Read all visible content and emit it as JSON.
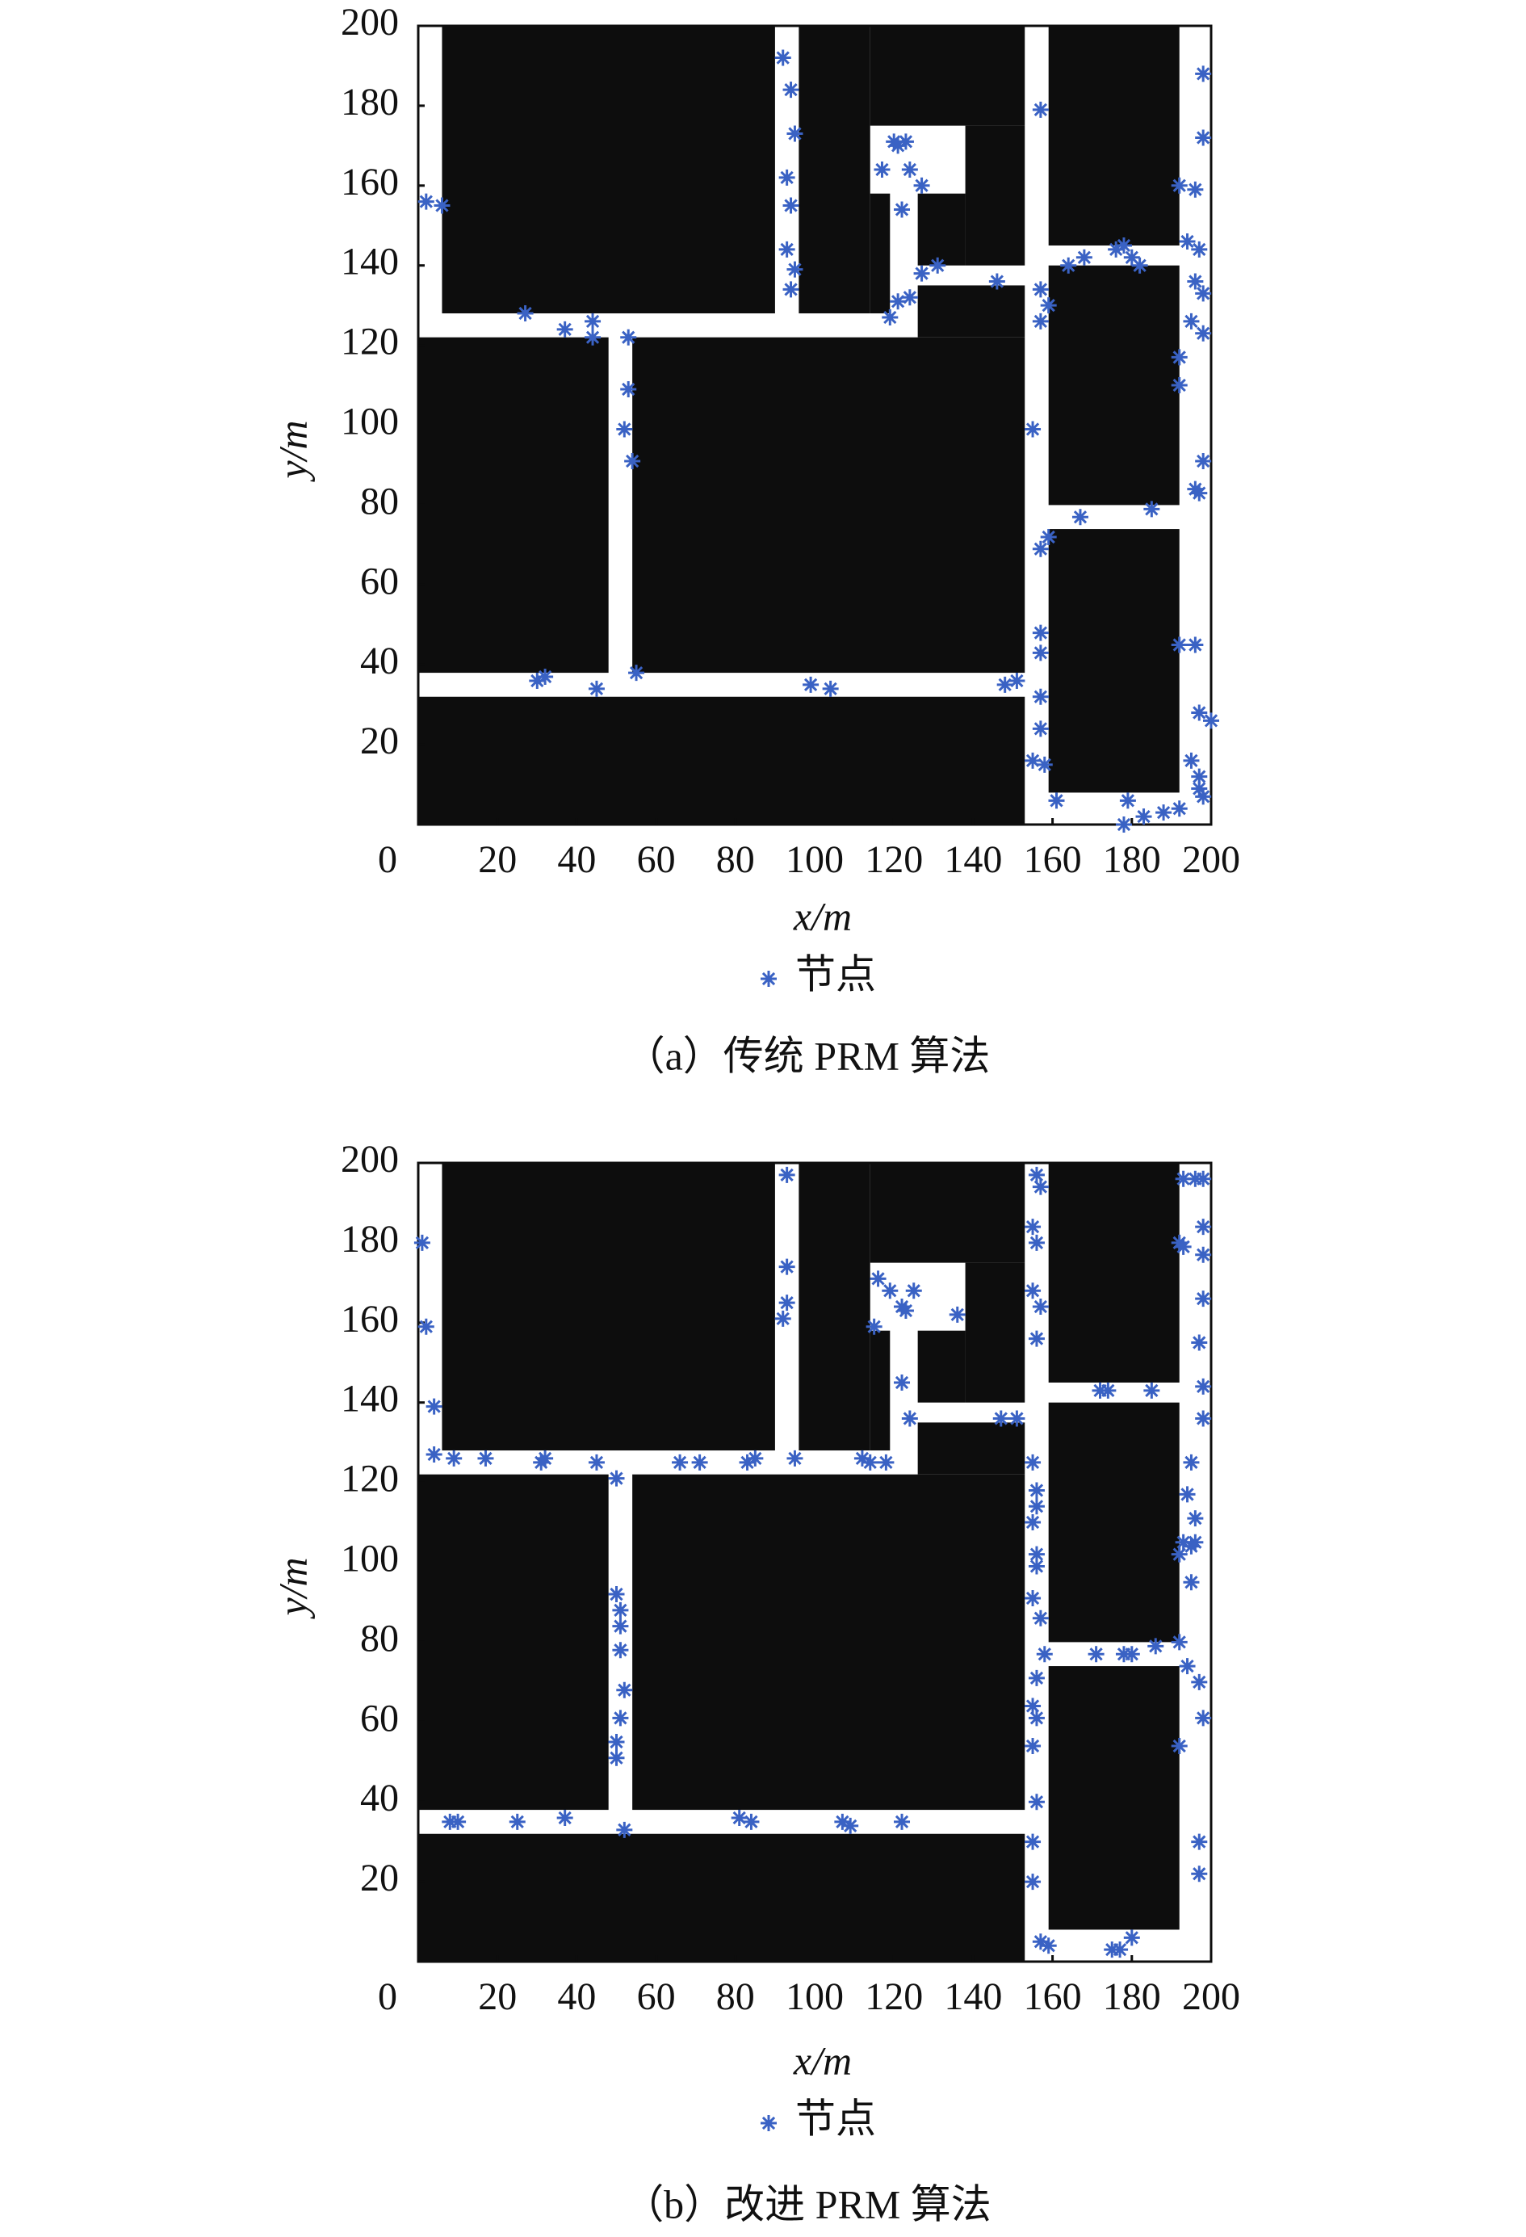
{
  "chart_data": [
    {
      "type": "scatter",
      "title": "（a）传统 PRM 算法",
      "x_label": "x/m",
      "y_label": "y/m",
      "xlim": [
        0,
        200
      ],
      "ylim": [
        0,
        200
      ],
      "xticks": [
        0,
        20,
        40,
        60,
        80,
        100,
        120,
        140,
        160,
        180,
        200
      ],
      "yticks": [
        20,
        40,
        60,
        80,
        100,
        120,
        140,
        160,
        180,
        200
      ],
      "series": [
        {
          "name": "节点",
          "color": "#3a62c4",
          "x": [
            2,
            6,
            27,
            37,
            44,
            44,
            53,
            53,
            52,
            54,
            30,
            32,
            45,
            55,
            99,
            104,
            148,
            151,
            92,
            94,
            95,
            93,
            94,
            93,
            95,
            94,
            120,
            123,
            121,
            117,
            124,
            127,
            122,
            119,
            121,
            124,
            127,
            131,
            146,
            157,
            157,
            157,
            159,
            155,
            159,
            157,
            167,
            185,
            157,
            157,
            157,
            157,
            155,
            158,
            161,
            164,
            168,
            176,
            178,
            180,
            182,
            179,
            178,
            183,
            188,
            192,
            198,
            198,
            192,
            196,
            194,
            197,
            196,
            198,
            195,
            198,
            192,
            192,
            198,
            196,
            197,
            192,
            196,
            197,
            200,
            195,
            197,
            198,
            197
          ],
          "values": [
            156,
            155,
            128,
            124,
            126,
            122,
            122,
            109,
            99,
            91,
            36,
            37,
            34,
            38,
            35,
            34,
            35,
            36,
            192,
            184,
            173,
            162,
            155,
            144,
            139,
            134,
            171,
            171,
            170,
            164,
            164,
            160,
            154,
            127,
            131,
            132,
            138,
            140,
            136,
            179,
            134,
            126,
            130,
            99,
            72,
            69,
            77,
            79,
            48,
            43,
            32,
            24,
            16,
            15,
            6,
            140,
            142,
            144,
            145,
            142,
            140,
            6,
            0,
            2,
            3,
            4,
            188,
            172,
            160,
            159,
            146,
            144,
            136,
            133,
            126,
            123,
            117,
            110,
            91,
            84,
            83,
            45,
            45,
            28,
            26,
            16,
            12,
            7,
            9
          ]
        }
      ]
    },
    {
      "type": "scatter",
      "title": "（b）改进 PRM 算法",
      "x_label": "x/m",
      "y_label": "y/m",
      "xlim": [
        0,
        200
      ],
      "ylim": [
        0,
        200
      ],
      "xticks": [
        0,
        20,
        40,
        60,
        80,
        100,
        120,
        140,
        160,
        180,
        200
      ],
      "yticks": [
        20,
        40,
        60,
        80,
        100,
        120,
        140,
        160,
        180,
        200
      ],
      "series": [
        {
          "name": "节点",
          "color": "#3a62c4",
          "x": [
            1,
            2,
            4,
            4,
            9,
            17,
            31,
            32,
            45,
            50,
            66,
            71,
            83,
            85,
            95,
            112,
            114,
            118,
            93,
            93,
            93,
            92,
            116,
            119,
            122,
            125,
            123,
            115,
            136,
            122,
            124,
            147,
            151,
            50,
            51,
            51,
            51,
            52,
            51,
            50,
            50,
            52,
            8,
            10,
            25,
            37,
            81,
            84,
            107,
            109,
            122,
            156,
            157,
            155,
            156,
            155,
            157,
            156,
            155,
            156,
            156,
            155,
            156,
            156,
            155,
            157,
            158,
            156,
            155,
            156,
            155,
            156,
            155,
            155,
            157,
            159,
            172,
            174,
            185,
            171,
            178,
            180,
            186,
            175,
            177,
            180,
            193,
            196,
            198,
            192,
            193,
            198,
            198,
            198,
            197,
            198,
            198,
            195,
            194,
            196,
            193,
            195,
            192,
            196,
            195,
            192,
            194,
            197,
            198,
            192,
            197,
            197
          ],
          "values": [
            180,
            159,
            139,
            127,
            126,
            126,
            125,
            126,
            125,
            121,
            125,
            125,
            125,
            126,
            126,
            126,
            125,
            125,
            197,
            174,
            165,
            161,
            171,
            168,
            164,
            168,
            163,
            159,
            162,
            145,
            136,
            136,
            136,
            92,
            88,
            84,
            78,
            68,
            61,
            55,
            51,
            33,
            35,
            35,
            35,
            36,
            36,
            35,
            35,
            34,
            35,
            197,
            194,
            184,
            180,
            168,
            164,
            156,
            125,
            118,
            114,
            110,
            102,
            99,
            91,
            86,
            77,
            71,
            64,
            61,
            54,
            40,
            30,
            20,
            5,
            4,
            143,
            143,
            143,
            77,
            77,
            77,
            79,
            3,
            3,
            6,
            196,
            196,
            196,
            180,
            179,
            184,
            177,
            166,
            155,
            144,
            136,
            125,
            117,
            111,
            105,
            104,
            102,
            105,
            95,
            80,
            74,
            70,
            61,
            54,
            30,
            22
          ]
        }
      ]
    }
  ]
}
